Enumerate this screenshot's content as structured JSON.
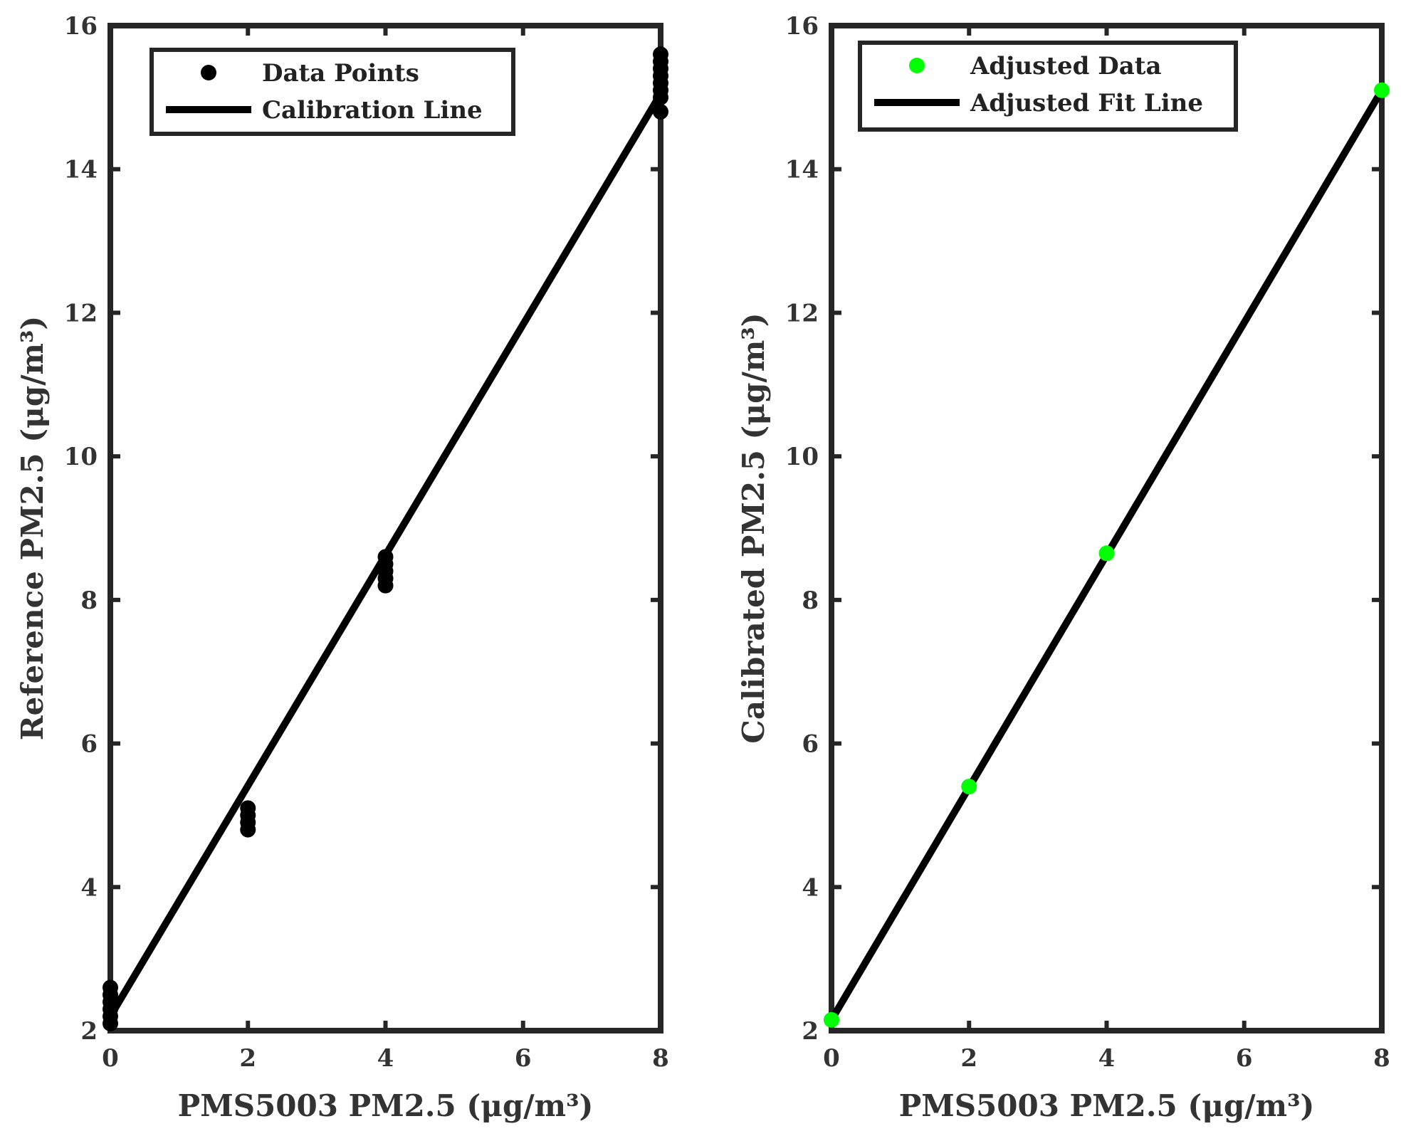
{
  "chart_data": [
    {
      "type": "scatter",
      "xlabel": "PMS5003 PM2.5 (μg/m³)",
      "ylabel": "Reference PM2.5 (μg/m³)",
      "xlim": [
        0,
        8
      ],
      "ylim": [
        2,
        16
      ],
      "xticks": [
        "0",
        "2",
        "4",
        "6",
        "8"
      ],
      "yticks": [
        "2",
        "4",
        "6",
        "8",
        "10",
        "12",
        "14",
        "16"
      ],
      "grid": false,
      "legend_position": "top-left",
      "series": [
        {
          "name": "Data Points",
          "kind": "scatter",
          "color": "#000000",
          "points": [
            [
              0,
              2.1
            ],
            [
              0,
              2.2
            ],
            [
              0,
              2.3
            ],
            [
              0,
              2.4
            ],
            [
              0,
              2.5
            ],
            [
              0,
              2.6
            ],
            [
              2,
              4.8
            ],
            [
              2,
              4.9
            ],
            [
              2,
              5.0
            ],
            [
              2,
              5.1
            ],
            [
              4,
              8.2
            ],
            [
              4,
              8.3
            ],
            [
              4,
              8.4
            ],
            [
              4,
              8.5
            ],
            [
              4,
              8.6
            ],
            [
              8,
              14.8
            ],
            [
              8,
              15.0
            ],
            [
              8,
              15.1
            ],
            [
              8,
              15.2
            ],
            [
              8,
              15.3
            ],
            [
              8,
              15.4
            ],
            [
              8,
              15.5
            ],
            [
              8,
              15.6
            ]
          ]
        },
        {
          "name": "Calibration Line",
          "kind": "line",
          "color": "#000000",
          "points": [
            [
              0,
              2.2
            ],
            [
              8,
              15.05
            ]
          ]
        }
      ]
    },
    {
      "type": "scatter",
      "xlabel": "PMS5003 PM2.5 (μg/m³)",
      "ylabel": "Calibrated PM2.5 (μg/m³)",
      "xlim": [
        0,
        8
      ],
      "ylim": [
        2,
        16
      ],
      "xticks": [
        "0",
        "2",
        "4",
        "6",
        "8"
      ],
      "yticks": [
        "2",
        "4",
        "6",
        "8",
        "10",
        "12",
        "14",
        "16"
      ],
      "grid": false,
      "legend_position": "top-left",
      "series": [
        {
          "name": "Adjusted Data",
          "kind": "scatter",
          "color": "#00ff00",
          "points": [
            [
              0,
              2.15
            ],
            [
              2,
              5.4
            ],
            [
              4,
              8.65
            ],
            [
              8,
              15.1
            ]
          ]
        },
        {
          "name": "Adjusted Fit Line",
          "kind": "line",
          "color": "#000000",
          "points": [
            [
              0,
              2.15
            ],
            [
              8,
              15.1
            ]
          ]
        }
      ]
    }
  ]
}
